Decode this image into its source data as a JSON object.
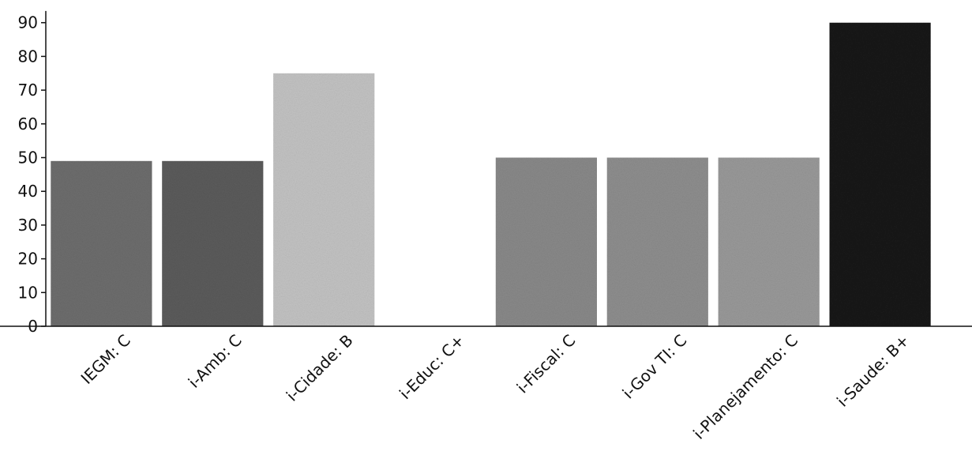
{
  "chart_data": {
    "type": "bar",
    "title": "",
    "xlabel": "",
    "ylabel": "",
    "categories": [
      "IEGM: C",
      "i-Amb: C",
      "i-Cidade: B",
      "i-Educ: C+",
      "i-Fiscal: C",
      "i-Gov TI: C",
      "i-Planejamento: C",
      "i-Saude: B+"
    ],
    "values": [
      49,
      49,
      75,
      0,
      50,
      50,
      50,
      90
    ],
    "bar_colors": [
      "#6e6e6e",
      "#5c5c5c",
      "#c4c4c4",
      "#ffffff",
      "#8a8a8a",
      "#8f8f8f",
      "#9a9a9a",
      "#1a1a1a"
    ],
    "ylim": [
      0,
      93
    ],
    "yticks": [
      0,
      10,
      20,
      30,
      40,
      50,
      60,
      70,
      80,
      90
    ],
    "grid": false,
    "legend": "none"
  }
}
